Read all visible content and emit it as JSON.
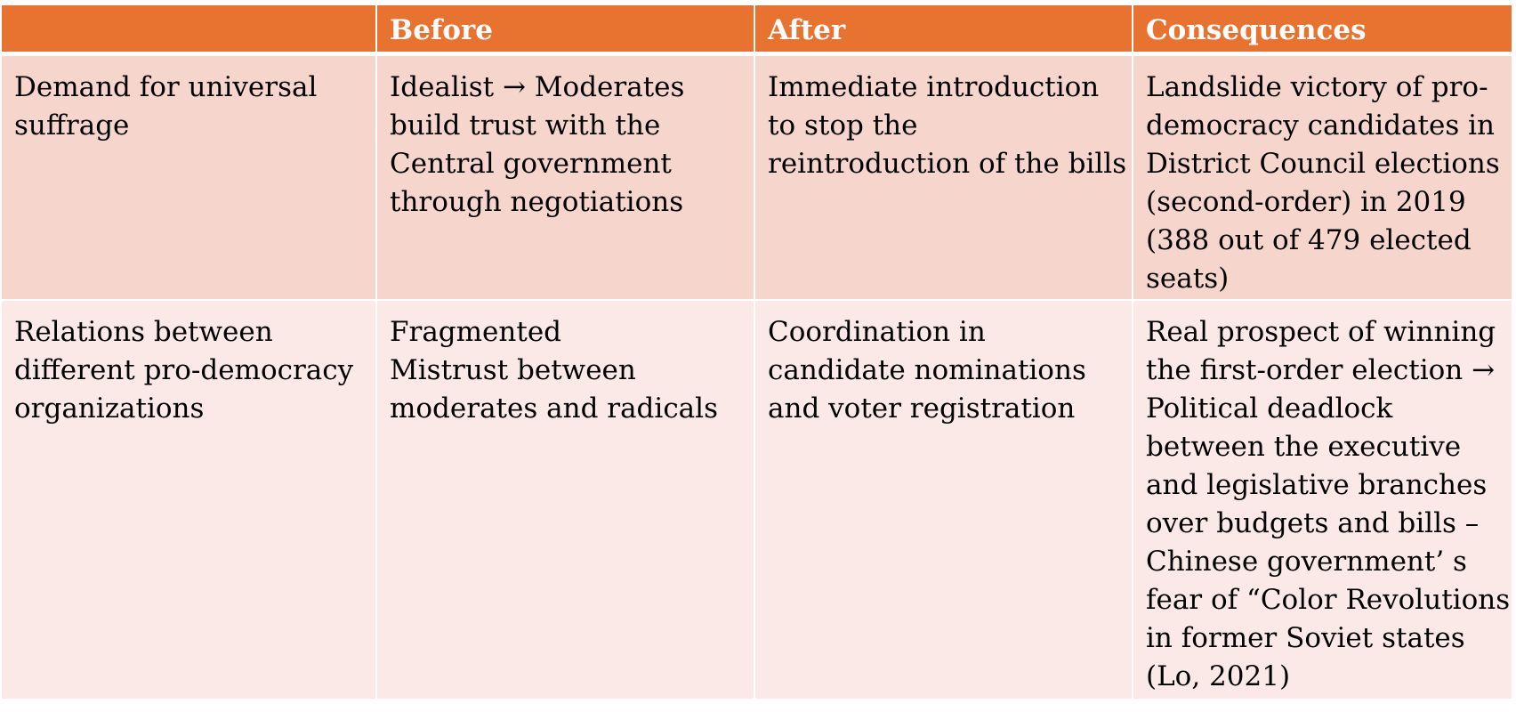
{
  "colors": {
    "header_bg": "#e87331",
    "row1_bg": "#f6d5cd",
    "row2_bg": "#fbe9e7",
    "header_text": "#ffffff",
    "body_text": "#000000"
  },
  "table": {
    "headers": [
      "",
      "Before",
      "After",
      "Consequences"
    ],
    "rows": [
      {
        "label": [
          "Demand for universal",
          "suffrage"
        ],
        "before": [
          "Idealist → Moderates",
          "build trust with the",
          "Central government",
          "through negotiations"
        ],
        "after": [
          "Immediate introduction",
          "to stop the",
          "reintroduction of the bills"
        ],
        "consequences": [
          "Landslide victory of pro-",
          "democracy candidates in",
          "District Council elections",
          "(second-order) in 2019",
          "(388 out of 479 elected",
          "seats)"
        ]
      },
      {
        "label": [
          "Relations between",
          "different pro-democracy",
          "organizations"
        ],
        "before": [
          "Fragmented",
          "Mistrust between",
          "moderates and radicals"
        ],
        "after": [
          "Coordination in",
          "candidate nominations",
          "and voter registration"
        ],
        "consequences": [
          "Real prospect of winning",
          "the first-order election →",
          "Political deadlock",
          "between the executive",
          "and legislative branches",
          "over budgets and bills –",
          "Chinese government’ s",
          "fear of “Color Revolutions”",
          "in former Soviet states",
          "(Lo, 2021)"
        ]
      }
    ]
  }
}
